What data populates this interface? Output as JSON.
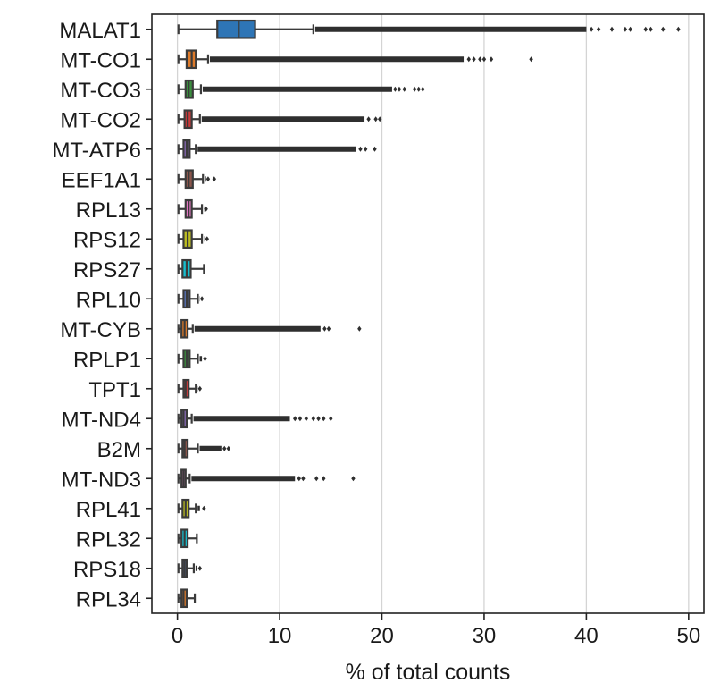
{
  "chart_data": {
    "type": "box",
    "orientation": "horizontal",
    "title": "",
    "xlabel": "% of total counts",
    "ylabel": "",
    "xlim": [
      -2.5,
      51.5
    ],
    "xticks": [
      0,
      10,
      20,
      30,
      40,
      50
    ],
    "grid": "vertical",
    "legend": "none",
    "outlier_color": "#333333",
    "categories": [
      "MALAT1",
      "MT-CO1",
      "MT-CO3",
      "MT-CO2",
      "MT-ATP6",
      "EEF1A1",
      "RPL13",
      "RPS12",
      "RPS27",
      "RPL10",
      "MT-CYB",
      "RPLP1",
      "TPT1",
      "MT-ND4",
      "B2M",
      "MT-ND3",
      "RPL41",
      "RPL32",
      "RPS18",
      "RPL34"
    ],
    "series": [
      {
        "category": "MALAT1",
        "color": "#2e75b6",
        "whisker_low": 0.1,
        "q1": 3.9,
        "median": 6.0,
        "q3": 7.6,
        "whisker_high": 13.3,
        "outlier_dense_until": 40.0,
        "outliers": [
          40.5,
          41.2,
          42.5,
          43.8,
          44.3,
          45.8,
          46.3,
          47.5,
          49.0
        ]
      },
      {
        "category": "MT-CO1",
        "color": "#dd7a2a",
        "whisker_low": 0.1,
        "q1": 0.9,
        "median": 1.4,
        "q3": 1.8,
        "whisker_high": 3.0,
        "outlier_dense_until": 28.0,
        "outliers": [
          28.5,
          29.0,
          29.6,
          30.0,
          30.7,
          34.6
        ]
      },
      {
        "category": "MT-CO3",
        "color": "#3a8f3e",
        "whisker_low": 0.1,
        "q1": 0.8,
        "median": 1.1,
        "q3": 1.5,
        "whisker_high": 2.3,
        "outlier_dense_until": 21.0,
        "outliers": [
          21.3,
          21.7,
          22.2,
          23.2,
          23.6,
          24.0
        ]
      },
      {
        "category": "MT-CO2",
        "color": "#c63b3b",
        "whisker_low": 0.1,
        "q1": 0.7,
        "median": 1.0,
        "q3": 1.4,
        "whisker_high": 2.2,
        "outlier_dense_until": 18.3,
        "outliers": [
          18.7,
          19.4,
          19.8
        ]
      },
      {
        "category": "MT-ATP6",
        "color": "#8a6ab8",
        "whisker_low": 0.1,
        "q1": 0.6,
        "median": 0.9,
        "q3": 1.2,
        "whisker_high": 1.8,
        "outlier_dense_until": 17.5,
        "outliers": [
          17.9,
          18.4,
          19.3
        ]
      },
      {
        "category": "EEF1A1",
        "color": "#8c564b",
        "whisker_low": 0.1,
        "q1": 0.8,
        "median": 1.1,
        "q3": 1.5,
        "whisker_high": 2.5,
        "outlier_dense_until": 2.8,
        "outliers": [
          3.0,
          3.6
        ]
      },
      {
        "category": "RPL13",
        "color": "#e377c2",
        "whisker_low": 0.1,
        "q1": 0.8,
        "median": 1.1,
        "q3": 1.4,
        "whisker_high": 2.4,
        "outlier_dense_until": 2.6,
        "outliers": [
          2.8
        ]
      },
      {
        "category": "RPS12",
        "color": "#bcbd22",
        "whisker_low": 0.1,
        "q1": 0.6,
        "median": 1.0,
        "q3": 1.4,
        "whisker_high": 2.4,
        "outlier_dense_until": 2.6,
        "outliers": [
          2.9
        ]
      },
      {
        "category": "RPS27",
        "color": "#17becf",
        "whisker_low": 0.1,
        "q1": 0.5,
        "median": 0.9,
        "q3": 1.3,
        "whisker_high": 2.6,
        "outlier_dense_until": 2.6,
        "outliers": []
      },
      {
        "category": "RPL10",
        "color": "#5b78c0",
        "whisker_low": 0.1,
        "q1": 0.6,
        "median": 0.9,
        "q3": 1.2,
        "whisker_high": 2.0,
        "outlier_dense_until": 2.2,
        "outliers": [
          2.4
        ]
      },
      {
        "category": "MT-CYB",
        "color": "#dd7a2a",
        "whisker_low": 0.1,
        "q1": 0.4,
        "median": 0.7,
        "q3": 1.0,
        "whisker_high": 1.5,
        "outlier_dense_until": 14.0,
        "outliers": [
          14.4,
          14.8,
          17.8
        ]
      },
      {
        "category": "RPLP1",
        "color": "#3a8f3e",
        "whisker_low": 0.1,
        "q1": 0.6,
        "median": 0.9,
        "q3": 1.2,
        "whisker_high": 2.0,
        "outlier_dense_until": 2.4,
        "outliers": [
          2.7
        ]
      },
      {
        "category": "TPT1",
        "color": "#c63b3b",
        "whisker_low": 0.1,
        "q1": 0.6,
        "median": 0.8,
        "q3": 1.1,
        "whisker_high": 1.8,
        "outlier_dense_until": 2.0,
        "outliers": [
          2.2
        ]
      },
      {
        "category": "MT-ND4",
        "color": "#8a6ab8",
        "whisker_low": 0.1,
        "q1": 0.4,
        "median": 0.6,
        "q3": 0.9,
        "whisker_high": 1.4,
        "outlier_dense_until": 11.0,
        "outliers": [
          11.5,
          12.0,
          12.6,
          13.3,
          13.8,
          14.3,
          15.0
        ]
      },
      {
        "category": "B2M",
        "color": "#8c564b",
        "whisker_low": 0.1,
        "q1": 0.5,
        "median": 0.7,
        "q3": 1.0,
        "whisker_high": 2.0,
        "outlier_dense_until": 4.3,
        "outliers": [
          4.6,
          5.0
        ]
      },
      {
        "category": "MT-ND3",
        "color": "#e377c2",
        "whisker_low": 0.1,
        "q1": 0.4,
        "median": 0.6,
        "q3": 0.8,
        "whisker_high": 1.2,
        "outlier_dense_until": 11.5,
        "outliers": [
          11.9,
          12.3,
          13.6,
          14.3,
          17.2
        ]
      },
      {
        "category": "RPL41",
        "color": "#bcbd22",
        "whisker_low": 0.1,
        "q1": 0.5,
        "median": 0.8,
        "q3": 1.1,
        "whisker_high": 1.8,
        "outlier_dense_until": 2.2,
        "outliers": [
          2.6
        ]
      },
      {
        "category": "RPL32",
        "color": "#17becf",
        "whisker_low": 0.1,
        "q1": 0.4,
        "median": 0.7,
        "q3": 1.0,
        "whisker_high": 1.9,
        "outlier_dense_until": 1.9,
        "outliers": []
      },
      {
        "category": "RPS18",
        "color": "#5b78c0",
        "whisker_low": 0.1,
        "q1": 0.5,
        "median": 0.7,
        "q3": 0.9,
        "whisker_high": 1.6,
        "outlier_dense_until": 1.9,
        "outliers": [
          2.2
        ]
      },
      {
        "category": "RPL34",
        "color": "#dd7a2a",
        "whisker_low": 0.1,
        "q1": 0.4,
        "median": 0.6,
        "q3": 0.9,
        "whisker_high": 1.7,
        "outlier_dense_until": 1.7,
        "outliers": []
      }
    ]
  }
}
